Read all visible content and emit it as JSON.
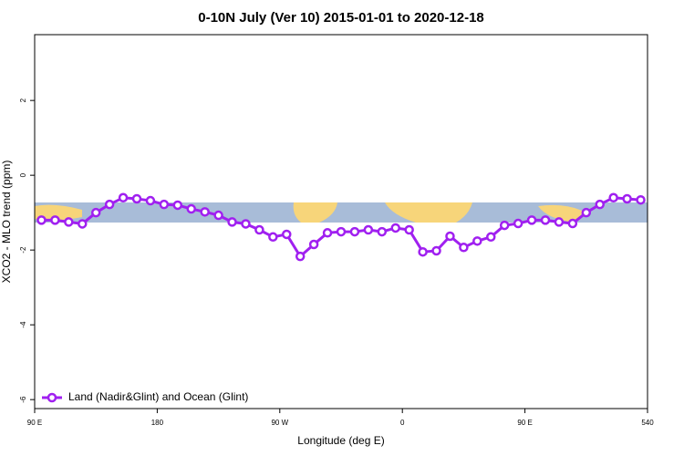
{
  "chart_data": {
    "type": "line",
    "title": "0-10N July (Ver 10)   2015-01-01 to 2020-12-18",
    "x_label": "Longitude (deg E)",
    "y_label": "XCO2 - MLO trend (ppm)",
    "x": [
      95,
      105,
      115,
      125,
      135,
      145,
      155,
      165,
      175,
      185,
      195,
      205,
      215,
      225,
      235,
      245,
      255,
      265,
      275,
      285,
      295,
      305,
      315,
      325,
      335,
      345,
      355,
      365,
      375,
      385,
      395,
      405,
      415,
      425,
      435,
      445,
      455,
      465,
      475,
      485,
      495,
      505,
      515,
      525,
      535
    ],
    "series": [
      {
        "name": "Land (Nadir&Glint) and Ocean (Glint)",
        "color": "#a020f0",
        "values": [
          -1.2,
          -1.2,
          -1.25,
          -1.3,
          -1.0,
          -0.78,
          -0.6,
          -0.63,
          -0.68,
          -0.78,
          -0.8,
          -0.9,
          -0.98,
          -1.07,
          -1.25,
          -1.3,
          -1.46,
          -1.65,
          -1.58,
          -2.17,
          -1.85,
          -1.54,
          -1.51,
          -1.51,
          -1.46,
          -1.51,
          -1.41,
          -1.46,
          -2.05,
          -2.02,
          -1.63,
          -1.93,
          -1.76,
          -1.65,
          -1.34,
          -1.29,
          -1.2,
          -1.2,
          -1.25,
          -1.29,
          -1.0,
          -0.78,
          -0.6,
          -0.63,
          -0.66
        ]
      }
    ],
    "xlim": [
      90,
      540
    ],
    "xticks": [
      {
        "value": 90,
        "label": "90 E"
      },
      180,
      {
        "value": 270,
        "label": "90 W"
      },
      {
        "value": 360,
        "label": "0"
      },
      {
        "value": 450,
        "label": "90 E"
      },
      540
    ],
    "ylim": [
      -6.24,
      3.76
    ],
    "yticks": [
      2,
      0,
      -2,
      -4,
      -6
    ],
    "legend": "bottom-left"
  }
}
